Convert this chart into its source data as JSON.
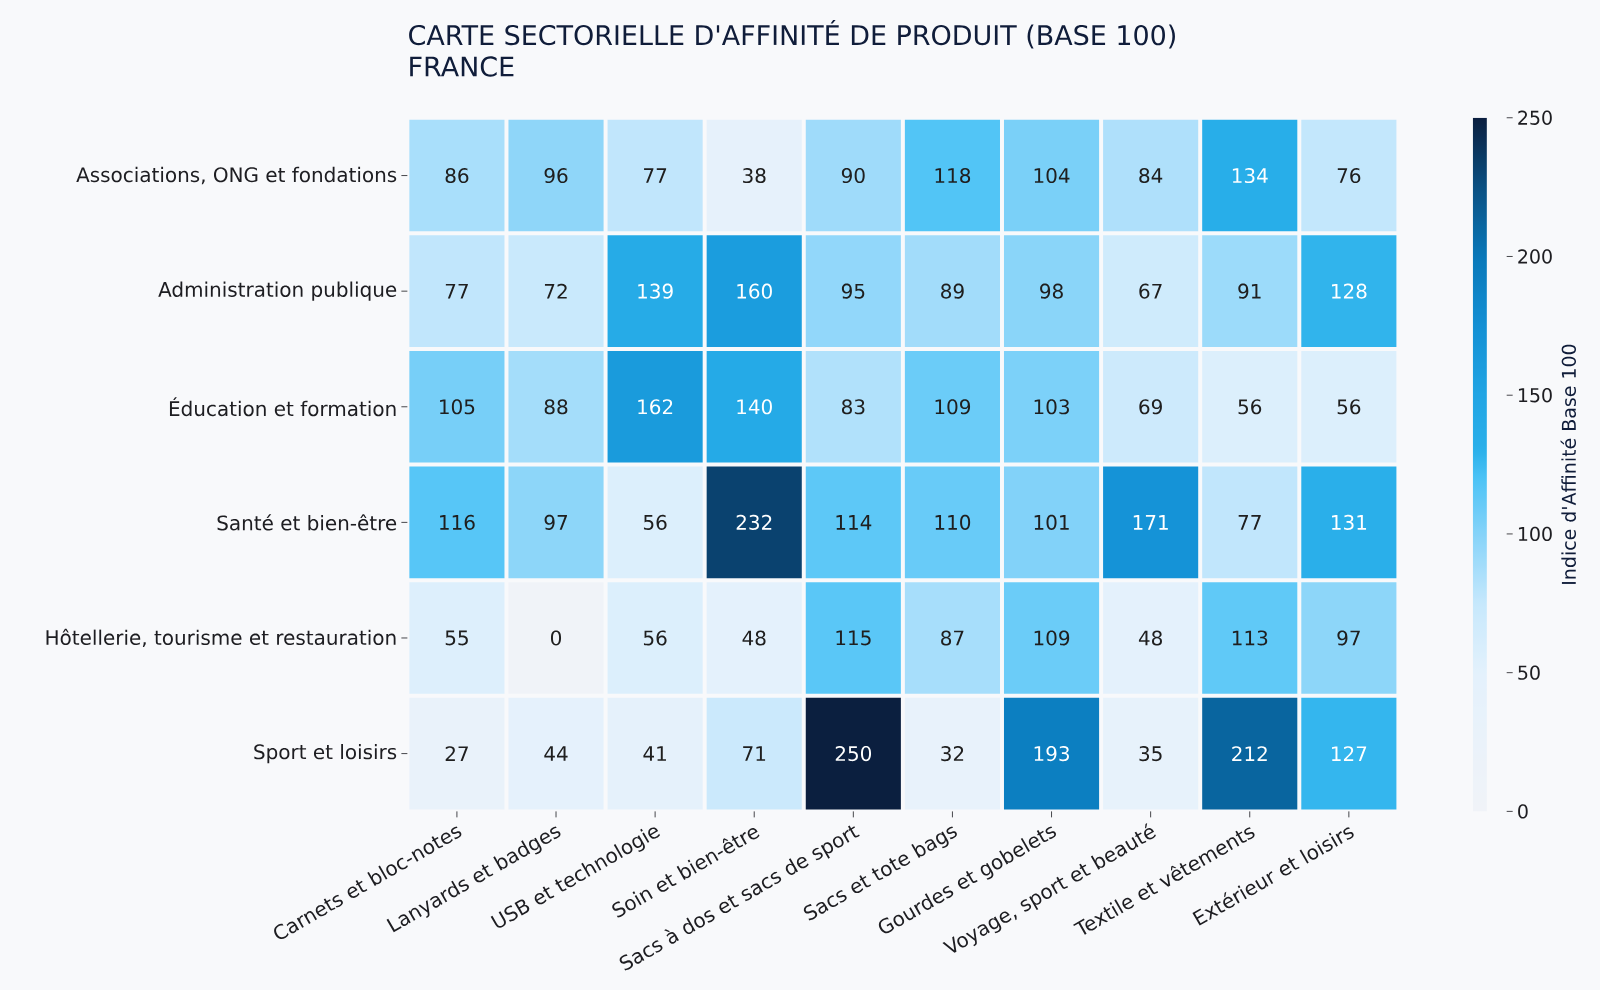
{
  "chart_data": {
    "type": "heatmap",
    "title": "CARTE SECTORIELLE D'AFFINITÉ DE PRODUIT (BASE 100)",
    "subtitle": "FRANCE",
    "clabel": "Indice d'Affinité Base 100",
    "categories": [
      "Carnets et bloc-notes",
      "Lanyards et badges",
      "USB et technologie",
      "Soin et bien-être",
      "Sacs à dos et sacs de sport",
      "Sacs et tote bags",
      "Gourdes et gobelets",
      "Voyage, sport et beauté",
      "Textile et vêtements",
      "Extérieur et loisirs"
    ],
    "y_categories": [
      "Associations, ONG et fondations",
      "Administration publique",
      "Éducation et formation",
      "Santé et bien-être",
      "Hôtellerie, tourisme et restauration",
      "Sport et loisirs"
    ],
    "cells": [
      [
        86,
        96,
        77,
        38,
        90,
        118,
        104,
        84,
        134,
        76
      ],
      [
        77,
        72,
        139,
        160,
        95,
        89,
        98,
        67,
        91,
        128
      ],
      [
        105,
        88,
        162,
        140,
        83,
        109,
        103,
        69,
        56,
        56
      ],
      [
        116,
        97,
        56,
        232,
        114,
        110,
        101,
        171,
        77,
        131
      ],
      [
        55,
        0,
        56,
        48,
        115,
        87,
        109,
        48,
        113,
        97
      ],
      [
        27,
        44,
        41,
        71,
        250,
        32,
        193,
        35,
        212,
        127
      ]
    ],
    "clim": [
      0,
      250
    ],
    "cticks": [
      0,
      50,
      100,
      150,
      200,
      250
    ],
    "data_labels": true
  }
}
